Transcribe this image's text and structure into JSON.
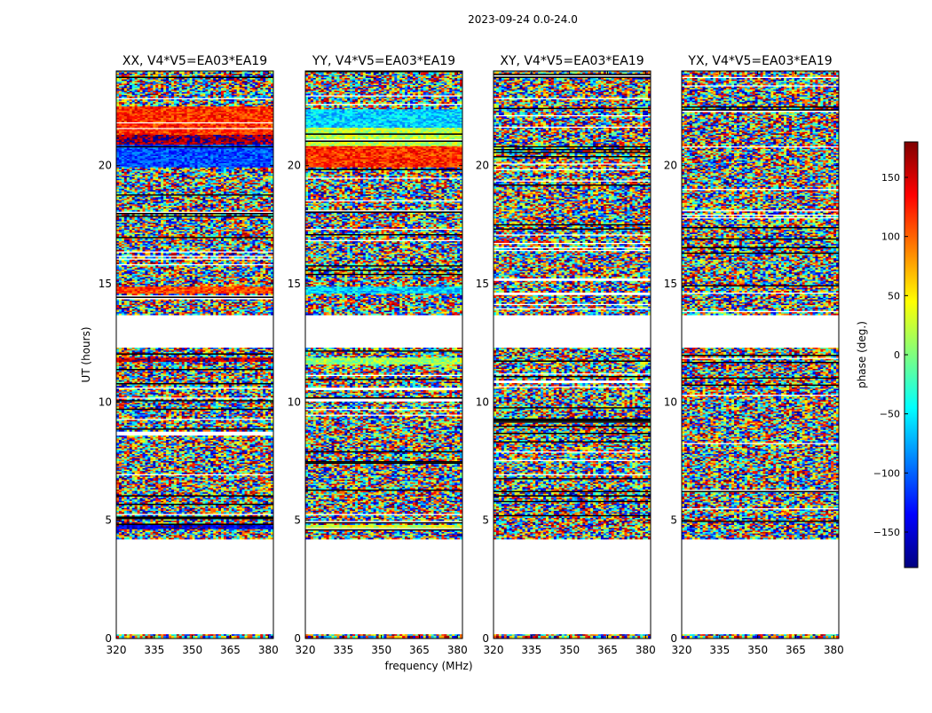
{
  "figure_title": "2023-09-24 0.0-24.0",
  "colors": {
    "jet": [
      "#00007f",
      "#0000ff",
      "#007fff",
      "#00ffff",
      "#7fff7f",
      "#ffff00",
      "#ff7f00",
      "#ff0000",
      "#7f0000"
    ],
    "axis": "#000000",
    "blank": "#ffffff"
  },
  "chart_data": {
    "type": "heatmap",
    "title": "2023-09-24 0.0-24.0",
    "xlabel": "frequency (MHz)",
    "ylabel": "UT (hours)",
    "xlim": [
      320,
      382
    ],
    "ylim": [
      0,
      24
    ],
    "xticks": [
      "320",
      "335",
      "350",
      "365",
      "380"
    ],
    "xtick_values": [
      320,
      335,
      350,
      365,
      380
    ],
    "yticks": [
      "0",
      "5",
      "10",
      "15",
      "20"
    ],
    "ytick_values": [
      0,
      5,
      10,
      15,
      20
    ],
    "colorbar": {
      "label": "phase (deg.)",
      "range": [
        -180,
        180
      ],
      "ticks": [
        "−150",
        "−100",
        "−50",
        "0",
        "50",
        "100",
        "150"
      ],
      "tick_values": [
        -150,
        -100,
        -50,
        0,
        50,
        100,
        150
      ]
    },
    "data_gaps_hours": [
      [
        0.15,
        4.2
      ],
      [
        12.3,
        13.7
      ]
    ],
    "panels": [
      {
        "title": "XX, V4*V5=EA03*EA19",
        "phase_bands": [
          {
            "ut": [
              21.3,
              22.5
            ],
            "phase": 120
          },
          {
            "ut": [
              20.9,
              21.3
            ],
            "phase": 170
          },
          {
            "ut": [
              19.9,
              20.9
            ],
            "phase": -110
          },
          {
            "ut": [
              14.6,
              14.9
            ],
            "phase": 110
          },
          {
            "ut": [
              11.7,
              11.9
            ],
            "phase": 160
          },
          {
            "ut": [
              4.6,
              4.8
            ],
            "phase": -150
          }
        ]
      },
      {
        "title": "YY, V4*V5=EA03*EA19",
        "phase_bands": [
          {
            "ut": [
              21.6,
              22.4
            ],
            "phase": -60
          },
          {
            "ut": [
              20.8,
              21.6
            ],
            "phase": 20
          },
          {
            "ut": [
              19.9,
              20.8
            ],
            "phase": 120
          },
          {
            "ut": [
              14.6,
              14.9
            ],
            "phase": -60
          },
          {
            "ut": [
              11.6,
              11.9
            ],
            "phase": 10
          },
          {
            "ut": [
              4.6,
              4.8
            ],
            "phase": 30
          }
        ]
      },
      {
        "title": "XY, V4*V5=EA03*EA19",
        "phase_bands": []
      },
      {
        "title": "YX, V4*V5=EA03*EA19",
        "phase_bands": []
      }
    ]
  }
}
